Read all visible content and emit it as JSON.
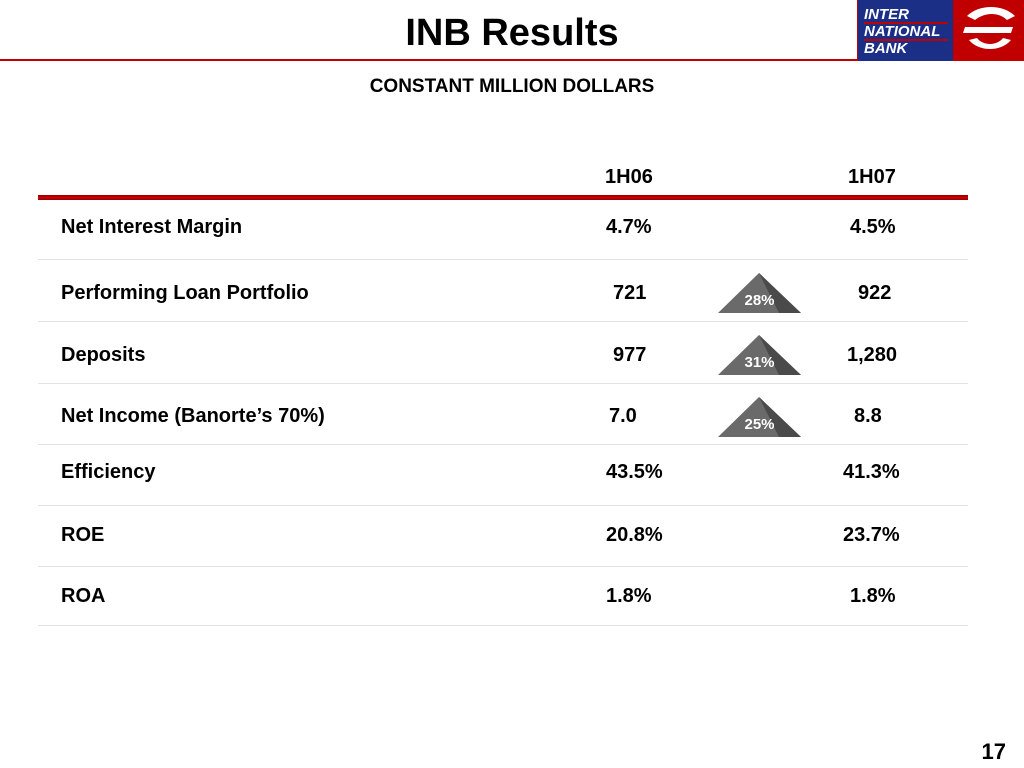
{
  "header": {
    "title": "INB Results",
    "subtitle": "CONSTANT MILLION DOLLARS",
    "logo_lines": [
      "INTER",
      "NATIONAL",
      "BANK"
    ],
    "colors": {
      "rule_red": "#c00000",
      "logo_blue": "#1c2f87",
      "badge_grey": "#666666"
    }
  },
  "table": {
    "columns": [
      "1H06",
      "1H07"
    ],
    "rows": [
      {
        "label": "Net Interest Margin",
        "v1": "4.7%",
        "v2": "4.5%",
        "growth": ""
      },
      {
        "label": "Performing Loan Portfolio",
        "v1": "721",
        "v2": "922",
        "growth": "28%"
      },
      {
        "label": "Deposits",
        "v1": "977",
        "v2": "1,280",
        "growth": "31%"
      },
      {
        "label": "Net Income (Banorte’s 70%)",
        "v1": "7.0",
        "v2": "8.8",
        "growth": "25%"
      },
      {
        "label": "Efficiency",
        "v1": "43.5%",
        "v2": "41.3%",
        "growth": ""
      },
      {
        "label": "ROE",
        "v1": "20.8%",
        "v2": "23.7%",
        "growth": ""
      },
      {
        "label": "ROA",
        "v1": "1.8%",
        "v2": "1.8%",
        "growth": ""
      }
    ]
  },
  "footer": {
    "page_number": "17"
  }
}
